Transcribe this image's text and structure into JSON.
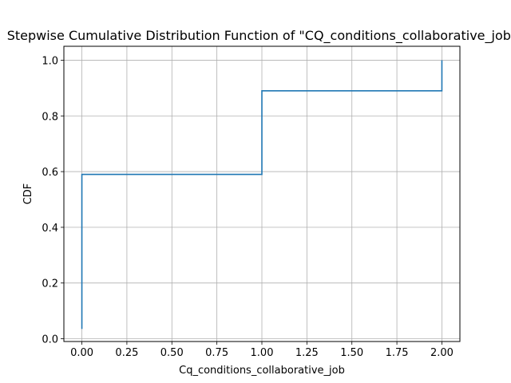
{
  "chart_data": {
    "type": "line",
    "step": true,
    "title": "Stepwise Cumulative Distribution Function of \"CQ_conditions_collaborative_job\"",
    "xlabel": "Cq_conditions_collaborative_job",
    "ylabel": "CDF",
    "xlim": [
      -0.1,
      2.1
    ],
    "ylim": [
      -0.01,
      1.05
    ],
    "xticks": [
      0.0,
      0.25,
      0.5,
      0.75,
      1.0,
      1.25,
      1.5,
      1.75,
      2.0
    ],
    "xtick_labels": [
      "0.00",
      "0.25",
      "0.50",
      "0.75",
      "1.00",
      "1.25",
      "1.50",
      "1.75",
      "2.00"
    ],
    "yticks": [
      0.0,
      0.2,
      0.4,
      0.6,
      0.8,
      1.0
    ],
    "ytick_labels": [
      "0.0",
      "0.2",
      "0.4",
      "0.6",
      "0.8",
      "1.0"
    ],
    "grid": true,
    "series": [
      {
        "color": "#1f77b4",
        "x": [
          0.0,
          0.0,
          1.0,
          1.0,
          2.0,
          2.0
        ],
        "y": [
          0.035,
          0.59,
          0.59,
          0.89,
          0.89,
          1.0
        ]
      }
    ]
  }
}
